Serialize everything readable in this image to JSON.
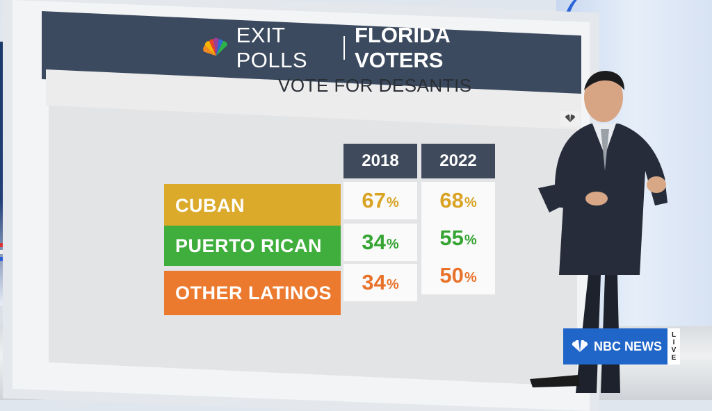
{
  "header": {
    "title_left": "EXIT POLLS",
    "title_right": "FLORIDA VOTERS",
    "logo_icon": "nbc-peacock-icon"
  },
  "subtitle": "VOTE FOR DESANTIS",
  "table": {
    "years": [
      "2018",
      "2022"
    ],
    "rows": [
      {
        "label": "CUBAN",
        "values": [
          "67",
          "68"
        ],
        "color": "#dcaa2a"
      },
      {
        "label": "PUERTO RICAN",
        "values": [
          "34",
          "55"
        ],
        "color": "#3fae3c"
      },
      {
        "label": "OTHER LATINOS",
        "values": [
          "34",
          "50"
        ],
        "color": "#ec7a2e"
      }
    ],
    "pct": "%"
  },
  "bug": {
    "network": "NBC NEWS",
    "live": [
      "L",
      "I",
      "V",
      "E"
    ],
    "color": "#1f66c8"
  }
}
